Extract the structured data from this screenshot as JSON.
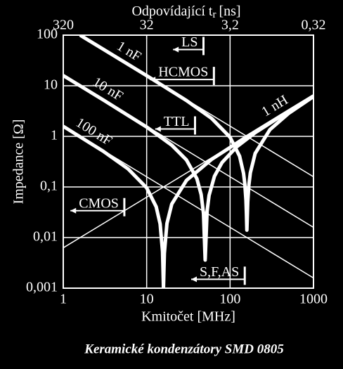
{
  "chart_data": {
    "type": "line",
    "title": "Keramické kondenzátory SMD 0805",
    "x_label": "Kmitočet [MHz]",
    "y_label": "Impedance [Ω]",
    "x2_label": "Odpovídající t",
    "x2_label_subscript": "r",
    "x2_label_unit": "[ns]",
    "log_x": true,
    "log_y": true,
    "grid": true,
    "xlim": [
      1,
      1000
    ],
    "xticks": [
      1,
      10,
      100,
      1000
    ],
    "ylim": [
      0.001,
      100
    ],
    "yticks": [
      {
        "value": 0.001,
        "label": "0,001"
      },
      {
        "value": 0.01,
        "label": "0,01"
      },
      {
        "value": 0.1,
        "label": "0,1"
      },
      1,
      10,
      100
    ],
    "x2lim": [
      320,
      0.32
    ],
    "x2ticks": [
      320,
      32,
      {
        "value": 3.2,
        "label": "3,2"
      },
      {
        "value": 0.32,
        "label": "0,32"
      }
    ],
    "series": [
      {
        "name": "1 nF",
        "color": "#ffffff",
        "line_width": 5,
        "x": [
          1.59,
          10,
          30,
          60,
          100,
          130,
          145,
          150,
          155,
          157,
          159,
          161,
          163,
          168,
          175,
          200,
          300,
          500,
          1000
        ],
        "values": [
          100,
          15.85,
          5.11,
          2.27,
          0.96,
          0.407,
          0.186,
          0.118,
          0.055,
          0.03,
          0.014,
          0.027,
          0.051,
          0.109,
          0.19,
          0.461,
          1.354,
          2.82,
          6.12
        ]
      },
      {
        "name": "10 nF",
        "color": "#ffffff",
        "line_width": 5,
        "x": [
          1,
          3,
          10,
          20,
          30,
          40,
          45,
          48,
          50.3,
          53,
          56,
          65,
          80,
          120,
          200,
          500,
          1000
        ],
        "values": [
          15.9,
          5.28,
          1.53,
          0.669,
          0.342,
          0.146,
          0.071,
          0.03,
          0.0036,
          0.033,
          0.068,
          0.163,
          0.303,
          0.621,
          1.18,
          3.11,
          6.26
        ]
      },
      {
        "name": "100 nF",
        "color": "#ffffff",
        "line_width": 5,
        "x": [
          1,
          3,
          6,
          10,
          13,
          14.5,
          15.5,
          15.9,
          16.3,
          17.5,
          20,
          30,
          60,
          150,
          400,
          1000
        ],
        "values": [
          1.58,
          0.511,
          0.227,
          0.096,
          0.0407,
          0.0186,
          0.0053,
          0.001,
          0.0049,
          0.019,
          0.046,
          0.135,
          0.35,
          0.93,
          2.51,
          6.28
        ]
      },
      {
        "name": "1 nH",
        "color": "#ffffff",
        "line_width": 1.5,
        "x": [
          1,
          1000
        ],
        "values": [
          0.00628,
          6.28
        ]
      },
      {
        "color": "#ffffff",
        "line_width": 1.5,
        "x": [
          1.59,
          1000
        ],
        "values": [
          100,
          0.159
        ]
      },
      {
        "color": "#ffffff",
        "line_width": 1.5,
        "x": [
          1,
          1000
        ],
        "values": [
          15.9,
          0.0159
        ]
      },
      {
        "color": "#ffffff",
        "line_width": 1.5,
        "x": [
          1,
          1000
        ],
        "values": [
          1.59,
          0.00159
        ]
      }
    ],
    "annotations": [
      {
        "label": "LS",
        "x": 48,
        "y": 52
      },
      {
        "label": "HCMOS",
        "x": 64,
        "y": 13.3
      },
      {
        "label": "TTL",
        "x": 38,
        "y": 1.4
      },
      {
        "label": "CMOS",
        "x": 5.4,
        "y": 0.034
      },
      {
        "label": "S,F,AS",
        "x": 150,
        "y": 0.0015
      }
    ]
  }
}
